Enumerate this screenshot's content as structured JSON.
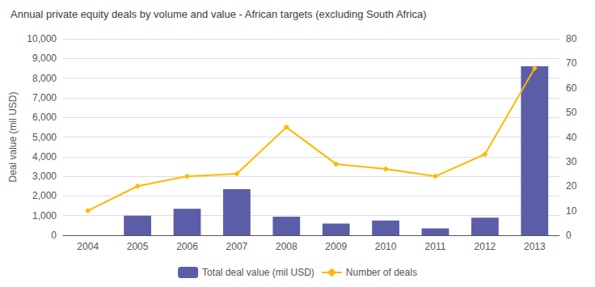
{
  "chart_data": {
    "type": "bar",
    "title": "Annual private equity deals by volume and value - African targets (excluding South Africa)",
    "categories": [
      "2004",
      "2005",
      "2006",
      "2007",
      "2008",
      "2009",
      "2010",
      "2011",
      "2012",
      "2013"
    ],
    "series": [
      {
        "name": "Total deal value (mil USD)",
        "type": "bar",
        "color": "#5b5ea6",
        "values": [
          0,
          1000,
          1350,
          2350,
          950,
          600,
          750,
          350,
          900,
          8600
        ]
      },
      {
        "name": "Number of deals",
        "type": "line",
        "color": "#FFB800",
        "marker": "diamond",
        "axis": "y2",
        "values": [
          10,
          20,
          24,
          25,
          44,
          29,
          27,
          24,
          33,
          68
        ]
      }
    ],
    "ylabel": "Deal value (mil USD)",
    "ylim": [
      0,
      10000
    ],
    "yticks": [
      0,
      {
        "value": 1000,
        "label": "1,000"
      },
      {
        "value": 2000,
        "label": "2,000"
      },
      {
        "value": 3000,
        "label": "3,000"
      },
      {
        "value": 4000,
        "label": "4,000"
      },
      {
        "value": 5000,
        "label": "5,000"
      },
      {
        "value": 6000,
        "label": "6,000"
      },
      {
        "value": 7000,
        "label": "7,000"
      },
      {
        "value": 8000,
        "label": "8,000"
      },
      {
        "value": 9000,
        "label": "9,000"
      },
      {
        "value": 10000,
        "label": "10,000"
      }
    ],
    "y2lim": [
      0,
      80
    ],
    "y2ticks": [
      0,
      10,
      20,
      30,
      40,
      50,
      60,
      70,
      80
    ],
    "grid": true,
    "legend": "bottom"
  }
}
